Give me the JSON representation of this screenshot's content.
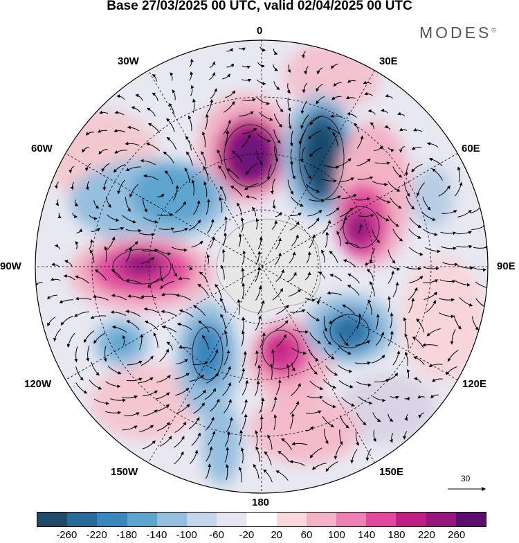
{
  "title": "Base 27/03/2025 00 UTC, valid 02/04/2025 00 UTC",
  "brand": {
    "name": "MODES",
    "mark": "©"
  },
  "longitude_labels": [
    "0",
    "30E",
    "60E",
    "90E",
    "120E",
    "150E",
    "180",
    "150W",
    "120W",
    "90W",
    "60W",
    "30W"
  ],
  "vector_reference": {
    "label": "30"
  },
  "colorbar": {
    "colors": [
      "#1f4a6a",
      "#2a6a99",
      "#3a87bd",
      "#5da4cf",
      "#95bfdf",
      "#c5d5ea",
      "#e5e6f1",
      "#ffffff",
      "#f9d8dc",
      "#f3b3c6",
      "#ec7fb3",
      "#e0499d",
      "#c02083",
      "#97167d",
      "#5b0e6d"
    ],
    "ticks": [
      "-260",
      "-220",
      "-180",
      "-140",
      "-100",
      "-60",
      "-20",
      "20",
      "60",
      "100",
      "140",
      "180",
      "220",
      "260"
    ]
  },
  "anomaly_centers": [
    {
      "sign": "positive",
      "color": "#7a1a7e"
    },
    {
      "sign": "negative",
      "color": "#1f4a6a"
    },
    {
      "sign": "positive",
      "color": "#a51c85"
    },
    {
      "sign": "negative",
      "color": "#2a6a99"
    },
    {
      "sign": "positive",
      "color": "#b01f85"
    },
    {
      "sign": "negative",
      "color": "#3a87bd"
    },
    {
      "sign": "negative",
      "color": "#3a87bd"
    },
    {
      "sign": "positive",
      "color": "#c02083"
    }
  ]
}
